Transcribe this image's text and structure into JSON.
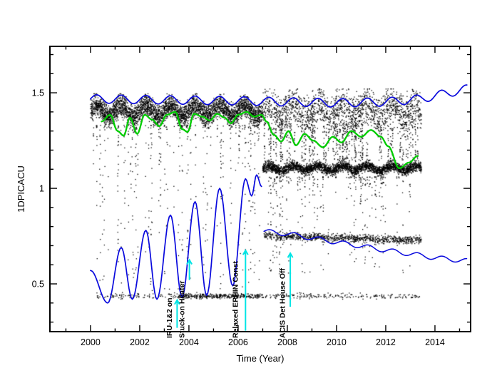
{
  "chart_data": {
    "type": "scatter",
    "title": "",
    "xlabel": "Time (Year)",
    "ylabel": "1DPICACU",
    "xlim": [
      1998.35,
      2015.45
    ],
    "ylim": [
      0.25,
      1.743
    ],
    "grid": false,
    "xticks": {
      "major": [
        2000,
        2002,
        2004,
        2006,
        2008,
        2010,
        2012,
        2014
      ],
      "labels": [
        "2000",
        "2002",
        "2004",
        "2006",
        "2008",
        "2010",
        "2012",
        "2014"
      ],
      "minor": [
        1999,
        2001,
        2003,
        2005,
        2007,
        2009,
        2011,
        2013,
        2015
      ]
    },
    "yticks": {
      "major": [
        0.5,
        1.0,
        1.5
      ],
      "labels": [
        "0.5",
        "1",
        "1.5"
      ],
      "minor": [
        0.3,
        0.4,
        0.6,
        0.7,
        0.8,
        0.9,
        1.1,
        1.2,
        1.3,
        1.4,
        1.6,
        1.7
      ]
    },
    "colors": {
      "points": "#000000",
      "blue": "#0909dd",
      "green": "#00cc00",
      "cyan": "#00e5e5",
      "axis": "#000000",
      "text": "#000000",
      "background": "#ffffff"
    },
    "scatter_bands": [
      {
        "name": "upper-band-early",
        "style": "gauss",
        "n": 3800,
        "x0": 2000.0,
        "x1": 2007.0,
        "base": 1.405,
        "spread": 0.028,
        "wiggle": 0.03,
        "vmin": 1.3,
        "vmax": 1.495
      },
      {
        "name": "upper-band-late",
        "style": "gauss",
        "n": 1800,
        "x0": 2007.0,
        "x1": 2013.45,
        "base": 1.4,
        "spread": 0.05,
        "wiggle": 0.028,
        "vmin": 1.27,
        "vmax": 1.52
      },
      {
        "name": "thick-band-late",
        "style": "gauss",
        "n": 3000,
        "x0": 2007.0,
        "x1": 2013.45,
        "base": 1.105,
        "spread": 0.013,
        "wiggle": 0.013,
        "vmin": 1.05,
        "vmax": 1.17
      },
      {
        "name": "halo-streaks-early",
        "style": "columns",
        "n": 520,
        "x0": 2000.1,
        "x1": 2007.0,
        "vmin": 0.46,
        "vmax": 1.33,
        "columns": 80,
        "pow": 2.2
      },
      {
        "name": "mid-speckle-late",
        "style": "columns",
        "n": 700,
        "x0": 2007.0,
        "x1": 2013.45,
        "vmin": 1.14,
        "vmax": 1.34,
        "columns": 90,
        "pow": 1
      },
      {
        "name": "low-speckle-late",
        "style": "columns",
        "n": 380,
        "x0": 2007.0,
        "x1": 2013.45,
        "vmin": 0.55,
        "vmax": 1.06,
        "columns": 70,
        "pow": 2.5
      },
      {
        "name": "row-0p75-late",
        "style": "gauss",
        "n": 900,
        "x0": 2007.05,
        "x1": 2013.45,
        "base": 0.752,
        "spread": 0.01,
        "wiggle": 0.004,
        "trend": -0.004,
        "vmin": 0.71,
        "vmax": 0.79
      },
      {
        "name": "bottom-row",
        "style": "gauss",
        "n": 420,
        "x0": 2000.2,
        "x1": 2013.4,
        "base": 0.436,
        "spread": 0.007,
        "wiggle": 0,
        "vmin": 0.4,
        "vmax": 0.46
      },
      {
        "name": "bottom-row-dense",
        "style": "gauss",
        "n": 260,
        "x0": 2003.5,
        "x1": 2007.0,
        "base": 0.436,
        "spread": 0.006,
        "wiggle": 0,
        "vmin": 0.41,
        "vmax": 0.46
      }
    ],
    "lines": [
      {
        "name": "upper-blue-envelope",
        "color": "blue",
        "width": 1.7,
        "kind": "osc",
        "period": 1,
        "phase": 0.25,
        "amp": 0.022,
        "midline": [
          [
            2000.0,
            1.468
          ],
          [
            2006.0,
            1.458
          ],
          [
            2010.0,
            1.447
          ],
          [
            2012.0,
            1.452
          ],
          [
            2013.4,
            1.468
          ],
          [
            2015.3,
            1.52
          ]
        ]
      },
      {
        "name": "seasonal-blue-left",
        "color": "blue",
        "width": 1.7,
        "kind": "key",
        "points": [
          [
            2000.0,
            0.57
          ],
          [
            2000.7,
            0.4
          ],
          [
            2001.25,
            0.69
          ],
          [
            2001.7,
            0.42
          ],
          [
            2002.25,
            0.78
          ],
          [
            2002.7,
            0.42
          ],
          [
            2003.25,
            0.86
          ],
          [
            2003.72,
            0.43
          ],
          [
            2004.25,
            0.93
          ],
          [
            2004.72,
            0.44
          ],
          [
            2005.25,
            1.0
          ],
          [
            2005.78,
            0.49
          ],
          [
            2006.3,
            1.05
          ],
          [
            2006.55,
            0.96
          ],
          [
            2006.75,
            1.07
          ],
          [
            2006.95,
            1.01
          ]
        ]
      },
      {
        "name": "lower-blue-late",
        "color": "blue",
        "width": 1.5,
        "kind": "osc",
        "period": 1,
        "phase": 0.3,
        "amp": 0.012,
        "midline": [
          [
            2007.05,
            0.775
          ],
          [
            2008.0,
            0.762
          ],
          [
            2009.0,
            0.74
          ],
          [
            2010.0,
            0.718
          ],
          [
            2011.0,
            0.698
          ],
          [
            2012.0,
            0.676
          ],
          [
            2013.0,
            0.657
          ],
          [
            2014.0,
            0.637
          ],
          [
            2015.3,
            0.62
          ]
        ]
      },
      {
        "name": "green-model",
        "color": "green",
        "width": 2.3,
        "kind": "key",
        "points": [
          [
            2000.45,
            1.35
          ],
          [
            2000.8,
            1.385
          ],
          [
            2001.1,
            1.3
          ],
          [
            2001.35,
            1.275
          ],
          [
            2001.6,
            1.37
          ],
          [
            2001.9,
            1.285
          ],
          [
            2002.2,
            1.385
          ],
          [
            2002.5,
            1.36
          ],
          [
            2002.8,
            1.325
          ],
          [
            2003.1,
            1.385
          ],
          [
            2003.45,
            1.4
          ],
          [
            2003.72,
            1.31
          ],
          [
            2003.95,
            1.295
          ],
          [
            2004.2,
            1.39
          ],
          [
            2004.55,
            1.375
          ],
          [
            2004.85,
            1.355
          ],
          [
            2005.15,
            1.39
          ],
          [
            2005.45,
            1.37
          ],
          [
            2005.7,
            1.34
          ],
          [
            2006.0,
            1.385
          ],
          [
            2006.35,
            1.4
          ],
          [
            2006.65,
            1.375
          ],
          [
            2006.95,
            1.385
          ],
          [
            2007.15,
            1.35
          ],
          [
            2007.45,
            1.28
          ],
          [
            2007.75,
            1.245
          ],
          [
            2008.05,
            1.3
          ],
          [
            2008.35,
            1.225
          ],
          [
            2008.7,
            1.285
          ],
          [
            2009.05,
            1.25
          ],
          [
            2009.45,
            1.215
          ],
          [
            2009.85,
            1.27
          ],
          [
            2010.2,
            1.24
          ],
          [
            2010.6,
            1.3
          ],
          [
            2011.0,
            1.27
          ],
          [
            2011.4,
            1.305
          ],
          [
            2011.8,
            1.27
          ],
          [
            2012.1,
            1.22
          ],
          [
            2012.55,
            1.105
          ],
          [
            2012.95,
            1.135
          ],
          [
            2013.3,
            1.17
          ]
        ]
      }
    ],
    "annotations": [
      {
        "label": "IRU-1&2 on",
        "x_text": 2003.3,
        "x_line": 2003.52,
        "line_v0": 0.27,
        "line_v1": 0.415
      },
      {
        "label": "Stuck-on Heater",
        "x_text": 2003.82,
        "x_line": 2004.02,
        "line_v0": 0.52,
        "line_v1": 0.625
      },
      {
        "label": "Relaxed EPHIN Const",
        "x_text": 2005.98,
        "x_line": 2006.3,
        "line_v0": 0.255,
        "line_v1": 0.675
      },
      {
        "label": "ACIS Det House Off",
        "x_text": 2007.9,
        "x_line": 2008.12,
        "line_v0": 0.38,
        "line_v1": 0.66
      }
    ]
  }
}
